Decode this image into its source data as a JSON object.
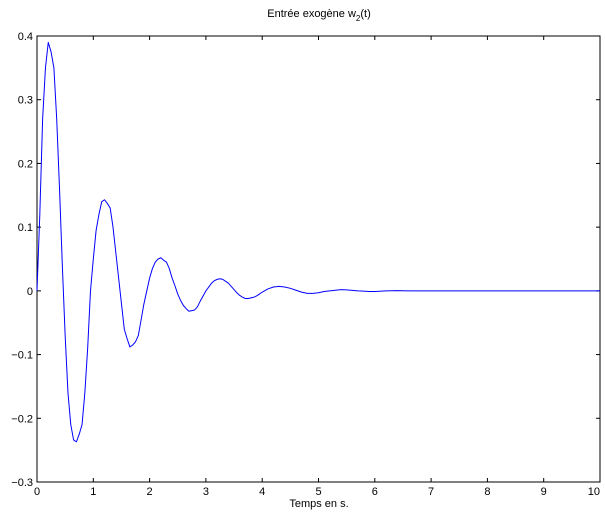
{
  "chart_data": {
    "type": "line",
    "title_main": "Entrée exogène w",
    "title_sub": "2",
    "title_tail": "(t)",
    "xlabel": "Temps en s.",
    "ylabel": "",
    "xlim": [
      0,
      10
    ],
    "ylim": [
      -0.3,
      0.4
    ],
    "x_ticks": [
      "0",
      "1",
      "2",
      "3",
      "4",
      "5",
      "6",
      "7",
      "8",
      "9",
      "10"
    ],
    "y_ticks": [
      "0.4",
      "0.3",
      "0.2",
      "0.1",
      "0",
      "−0.1",
      "−0.2",
      "−0.3"
    ],
    "grid": false,
    "line_color": "#0000ff",
    "series": [
      {
        "x": [
          0,
          0.05,
          0.1,
          0.15,
          0.2,
          0.25,
          0.3,
          0.35,
          0.4,
          0.45,
          0.5,
          0.55,
          0.6,
          0.65,
          0.7,
          0.75,
          0.8,
          0.85,
          0.9,
          0.95,
          1.0,
          1.05,
          1.1,
          1.15,
          1.2,
          1.25,
          1.3,
          1.35,
          1.4,
          1.45,
          1.5,
          1.55,
          1.6,
          1.65,
          1.7,
          1.75,
          1.8,
          1.85,
          1.9,
          1.95,
          2.0,
          2.05,
          2.1,
          2.15,
          2.2,
          2.25,
          2.3,
          2.35,
          2.4,
          2.45,
          2.5,
          2.55,
          2.6,
          2.65,
          2.7,
          2.75,
          2.8,
          2.85,
          2.9,
          2.95,
          3.0,
          3.05,
          3.1,
          3.15,
          3.2,
          3.25,
          3.3,
          3.35,
          3.4,
          3.45,
          3.5,
          3.55,
          3.6,
          3.65,
          3.7,
          3.75,
          3.8,
          3.85,
          3.9,
          3.95,
          4.0,
          4.1,
          4.2,
          4.3,
          4.4,
          4.5,
          4.6,
          4.7,
          4.8,
          4.9,
          5.0,
          5.1,
          5.2,
          5.3,
          5.4,
          5.5,
          5.6,
          5.7,
          5.8,
          5.9,
          6.0,
          6.2,
          6.4,
          6.6,
          6.8,
          7.0,
          7.5,
          8.0,
          8.5,
          9.0,
          9.5,
          10.0
        ],
        "y": [
          0,
          0.12,
          0.27,
          0.35,
          0.39,
          0.375,
          0.35,
          0.27,
          0.16,
          0.04,
          -0.07,
          -0.16,
          -0.21,
          -0.234,
          -0.237,
          -0.225,
          -0.21,
          -0.16,
          -0.09,
          0.0,
          0.05,
          0.095,
          0.12,
          0.14,
          0.143,
          0.137,
          0.13,
          0.1,
          0.06,
          0.02,
          -0.02,
          -0.06,
          -0.075,
          -0.088,
          -0.085,
          -0.08,
          -0.07,
          -0.045,
          -0.02,
          0.0,
          0.02,
          0.035,
          0.045,
          0.05,
          0.052,
          0.048,
          0.045,
          0.035,
          0.02,
          0.008,
          -0.005,
          -0.015,
          -0.023,
          -0.028,
          -0.032,
          -0.031,
          -0.03,
          -0.025,
          -0.016,
          -0.008,
          0.0,
          0.006,
          0.012,
          0.016,
          0.018,
          0.019,
          0.018,
          0.015,
          0.012,
          0.007,
          0.002,
          -0.003,
          -0.007,
          -0.01,
          -0.012,
          -0.012,
          -0.011,
          -0.01,
          -0.008,
          -0.005,
          -0.002,
          0.003,
          0.006,
          0.007,
          0.006,
          0.004,
          0.001,
          -0.002,
          -0.004,
          -0.004,
          -0.003,
          -0.001,
          0.0,
          0.001,
          0.002,
          0.0015,
          0.0008,
          0.0,
          -0.0005,
          -0.001,
          -0.001,
          0.0,
          0.0003,
          0.0,
          0.0,
          0.0,
          0.0,
          0.0,
          0.0,
          0.0,
          0.0,
          0.0
        ]
      }
    ]
  }
}
